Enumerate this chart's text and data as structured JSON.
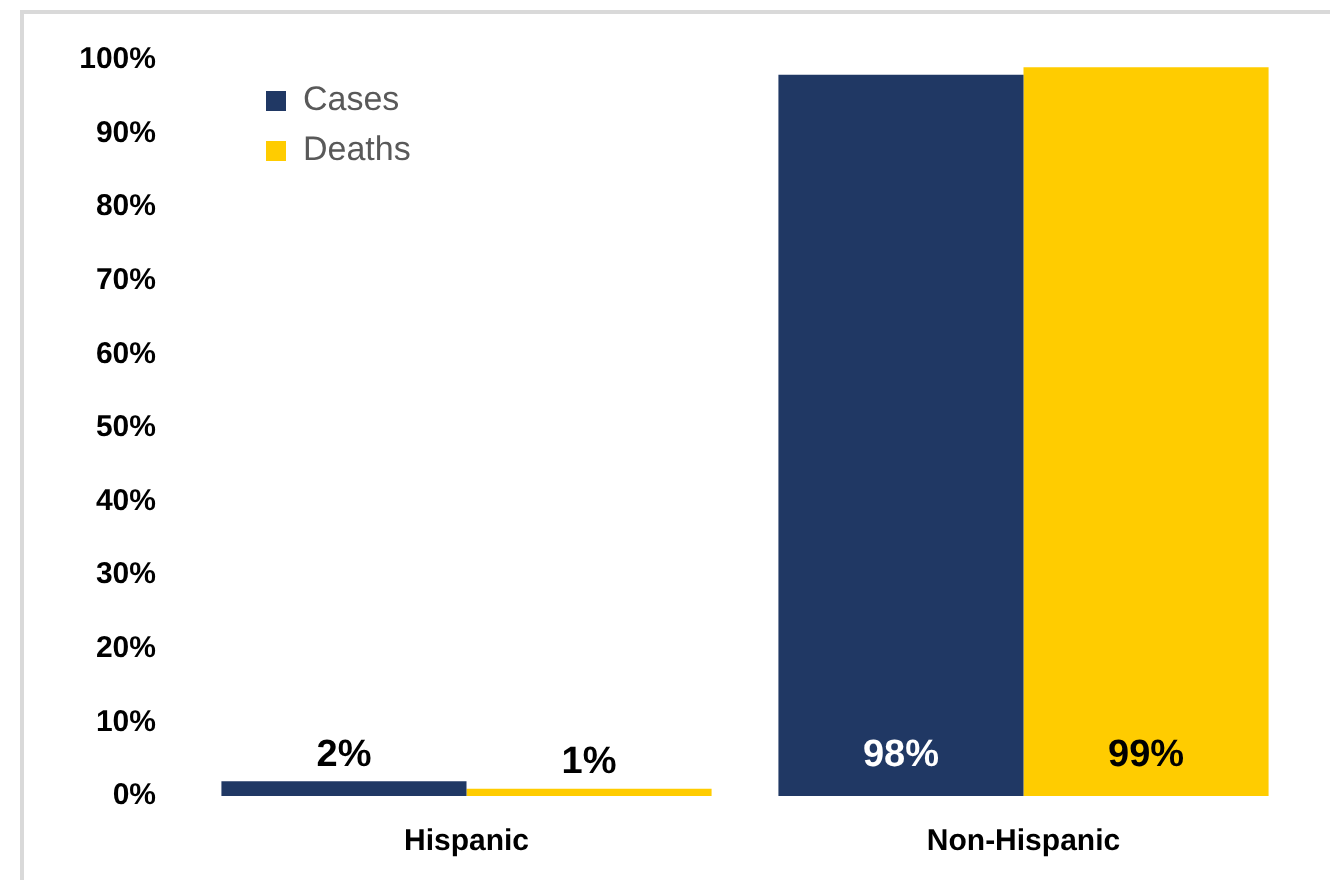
{
  "chart_data": {
    "type": "bar",
    "categories": [
      "Hispanic",
      "Non-Hispanic"
    ],
    "series": [
      {
        "name": "Cases",
        "color": "#203864",
        "values": [
          2,
          98
        ],
        "value_labels": [
          "2%",
          "98%"
        ]
      },
      {
        "name": "Deaths",
        "color": "#ffcc00",
        "values": [
          1,
          99
        ],
        "value_labels": [
          "1%",
          "99%"
        ]
      }
    ],
    "ylim": [
      0,
      100
    ],
    "yticks": [
      {
        "value": 0,
        "label": "0%"
      },
      {
        "value": 10,
        "label": "10%"
      },
      {
        "value": 20,
        "label": "20%"
      },
      {
        "value": 30,
        "label": "30%"
      },
      {
        "value": 40,
        "label": "40%"
      },
      {
        "value": 50,
        "label": "50%"
      },
      {
        "value": 60,
        "label": "60%"
      },
      {
        "value": 70,
        "label": "70%"
      },
      {
        "value": 80,
        "label": "80%"
      },
      {
        "value": 90,
        "label": "90%"
      },
      {
        "value": 100,
        "label": "100%"
      }
    ],
    "grid": false,
    "legend": "top left"
  }
}
